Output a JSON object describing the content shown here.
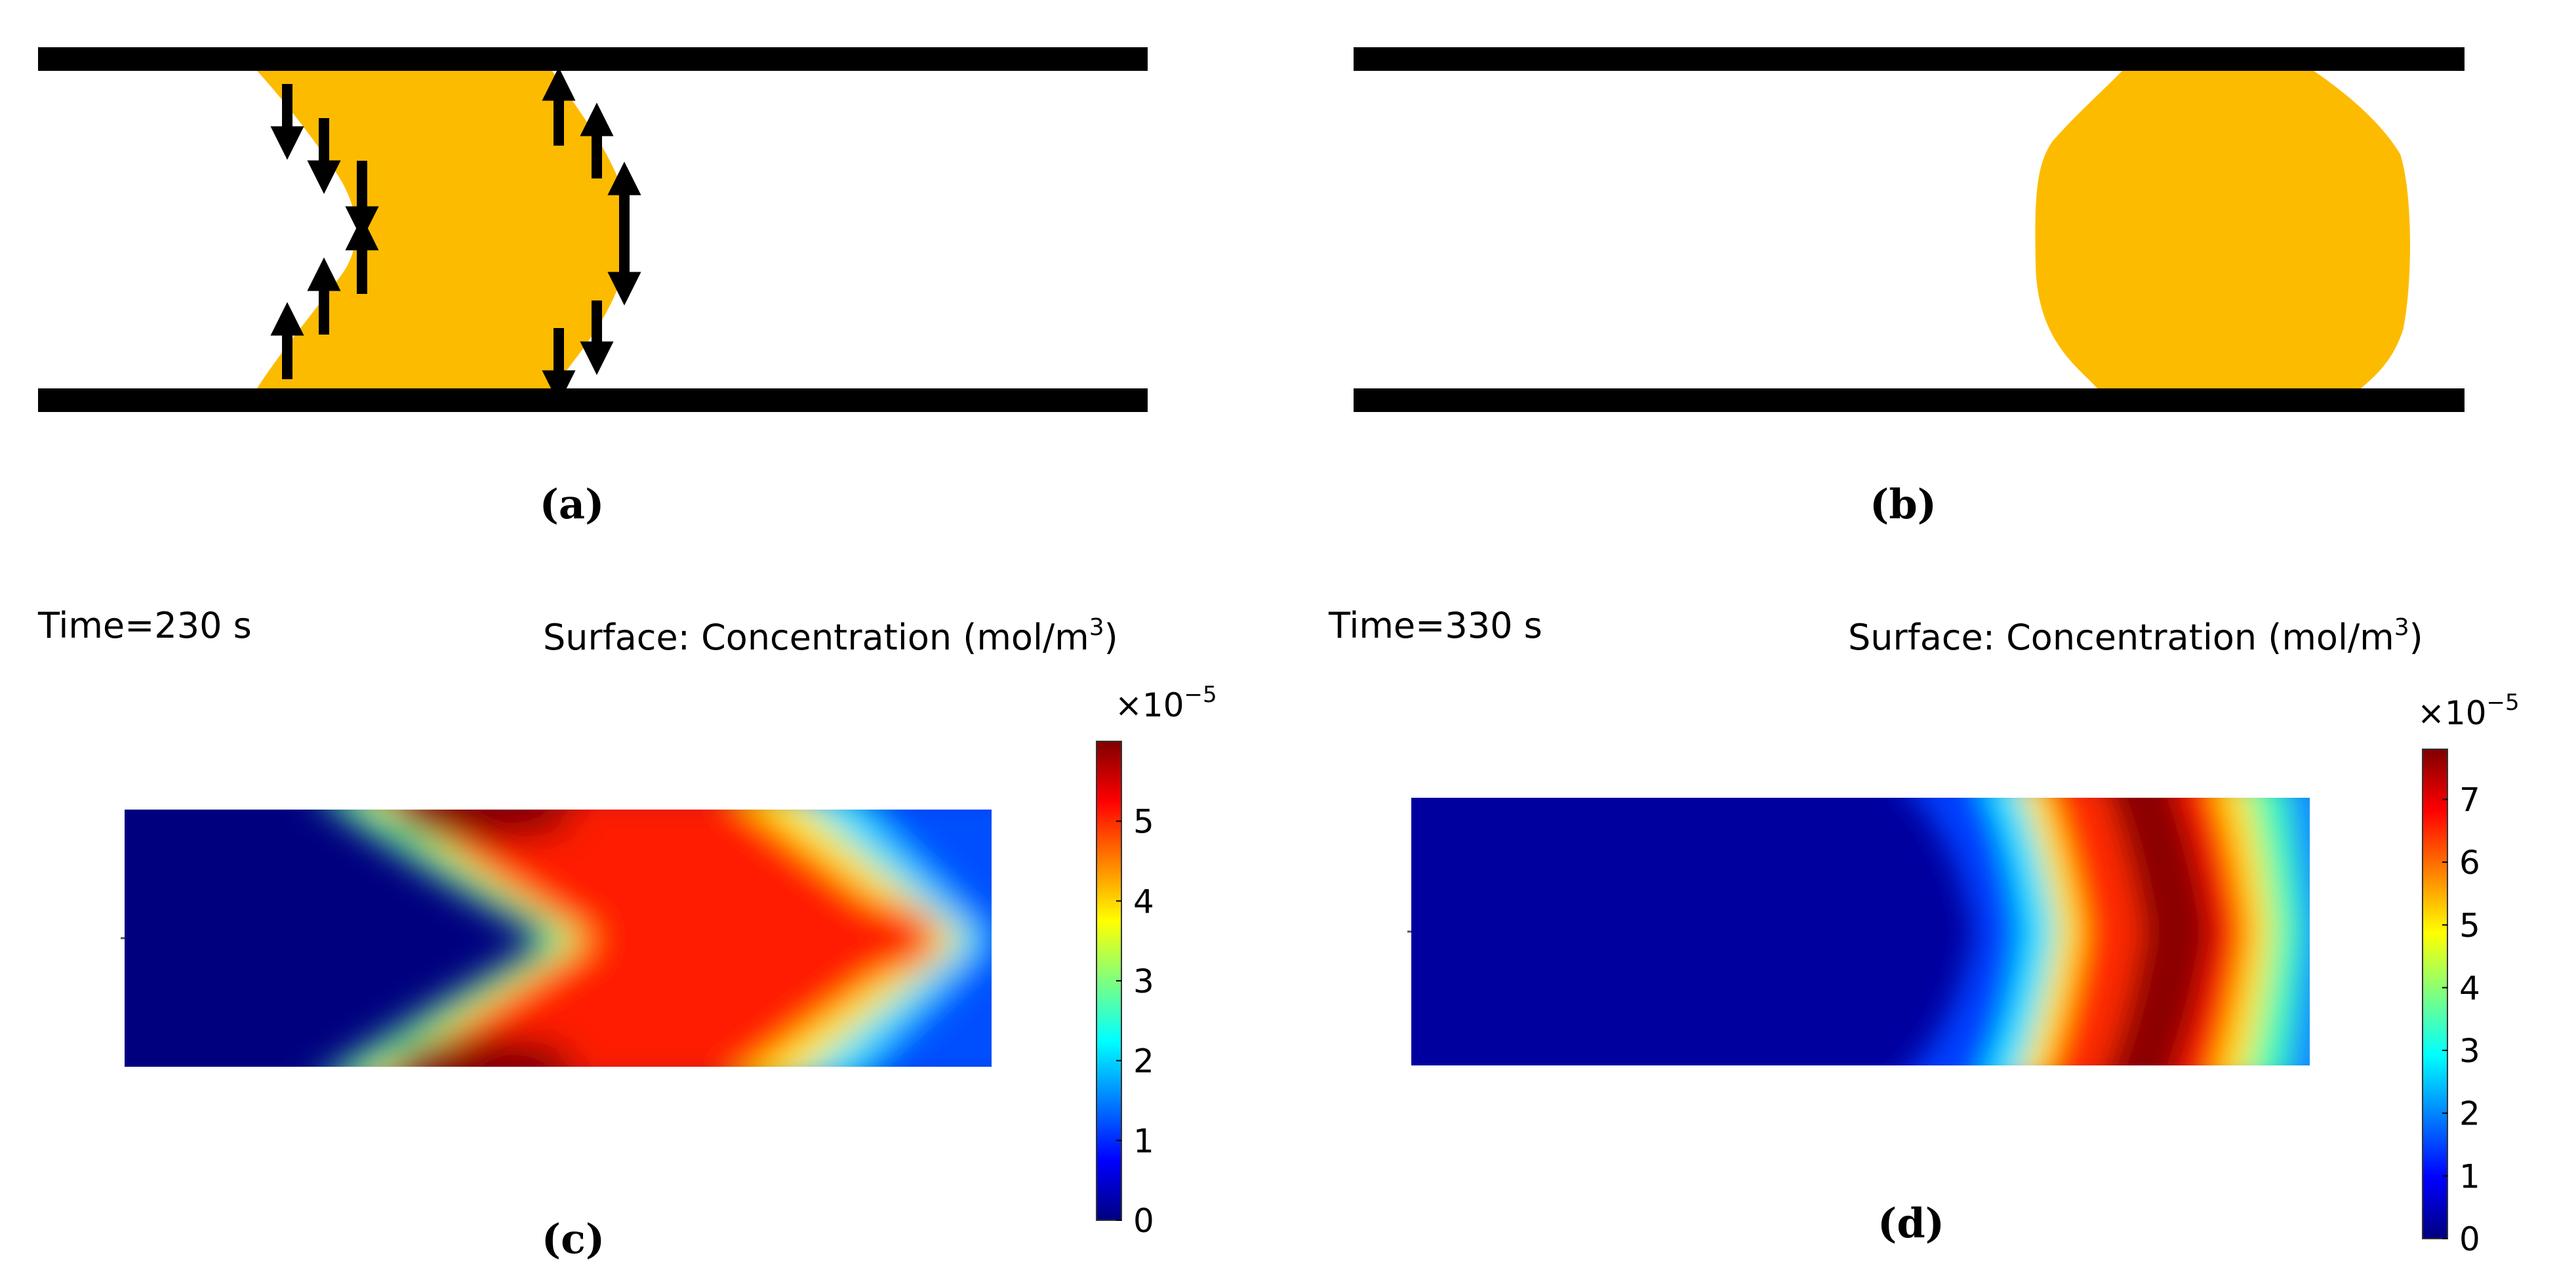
{
  "panels": {
    "a": {
      "label": "(a)"
    },
    "b": {
      "label": "(b)"
    },
    "c": {
      "label": "(c)",
      "time_text": "Time=230 s",
      "surface_prefix": "Surface: Concentration (mol/m",
      "surface_sup": "3",
      "surface_suffix": ")",
      "colorbar_exponent_base": "×10",
      "colorbar_exponent_power": "−5",
      "colorbar_ticks": [
        "0",
        "1",
        "2",
        "3",
        "4",
        "5"
      ],
      "colorbar_max": 6.0
    },
    "d": {
      "label": "(d)",
      "time_text": "Time=330 s",
      "surface_prefix": "Surface: Concentration (mol/m",
      "surface_sup": "3",
      "surface_suffix": ")",
      "colorbar_exponent_base": "×10",
      "colorbar_exponent_power": "−5",
      "colorbar_ticks": [
        "0",
        "1",
        "2",
        "3",
        "4",
        "5",
        "6",
        "7"
      ],
      "colorbar_max": 7.8
    }
  },
  "colors": {
    "droplet": "#FDBB00",
    "wall": "#000000",
    "jet_colormap": [
      "#00007F",
      "#0000FF",
      "#007FFF",
      "#00FFFF",
      "#7FFF7F",
      "#FFFF00",
      "#FF7F00",
      "#FF0000",
      "#7F0000"
    ]
  }
}
